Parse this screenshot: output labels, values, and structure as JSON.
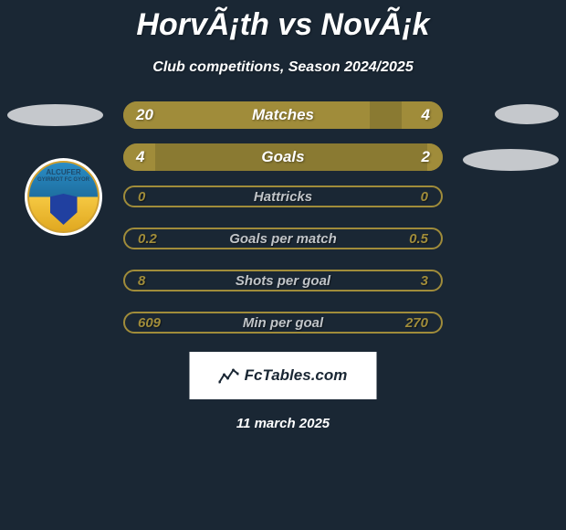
{
  "title": "HorvÃ¡th vs NovÃ¡k",
  "subtitle": "Club competitions, Season 2024/2025",
  "date_text": "11 march 2025",
  "branding_text": "FcTables.com",
  "colors": {
    "background": "#1a2734",
    "bar_primary": "#a08c3a",
    "bar_secondary": "#8a7a32",
    "text": "#ffffff",
    "accent_text": "#a08c3a",
    "label_dim": "#c0c4c8",
    "ellipse": "#c5c8cc"
  },
  "badge": {
    "line1": "ALCUFER",
    "line2": "GYIRMOT FC GYOR"
  },
  "stats": [
    {
      "label": "Matches",
      "left_value": "20",
      "right_value": "4",
      "type": "filled",
      "left_fill_pct": 77,
      "right_fill_pct": 13
    },
    {
      "label": "Goals",
      "left_value": "4",
      "right_value": "2",
      "type": "filled",
      "left_fill_pct": 10,
      "right_fill_pct": 5
    },
    {
      "label": "Hattricks",
      "left_value": "0",
      "right_value": "0",
      "type": "slim"
    },
    {
      "label": "Goals per match",
      "left_value": "0.2",
      "right_value": "0.5",
      "type": "slim"
    },
    {
      "label": "Shots per goal",
      "left_value": "8",
      "right_value": "3",
      "type": "slim"
    },
    {
      "label": "Min per goal",
      "left_value": "609",
      "right_value": "270",
      "type": "slim"
    }
  ]
}
